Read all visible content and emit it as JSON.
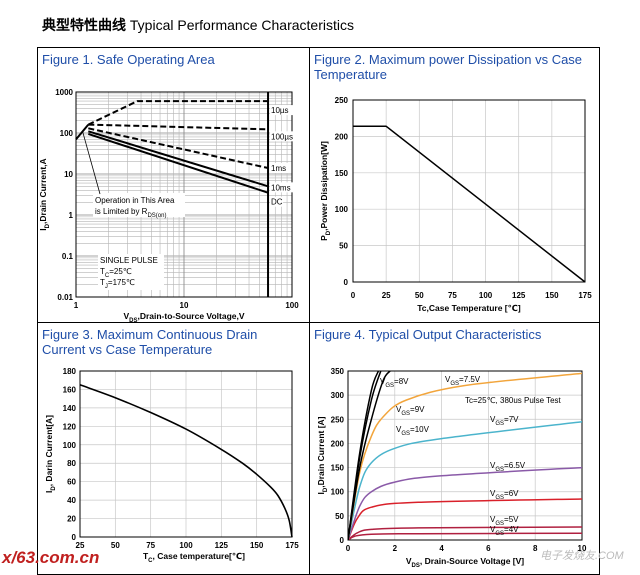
{
  "page": {
    "title_cn": "典型特性曲线",
    "title_en": "Typical Performance Characteristics",
    "watermark_left": "x/63.com.cn",
    "watermark_right": "电子发烧友.COM"
  },
  "colors": {
    "title_blue": "#1f4ea8",
    "orange": "#f2a53c",
    "teal": "#4bb4cc",
    "purple": "#8a5aa8",
    "red": "#d9202a",
    "crimson": "#b02040"
  },
  "figures": [
    {
      "title": "Figure 1. Safe Operating Area"
    },
    {
      "title": "Figure 2. Maximum power Dissipation vs Case Temperature"
    },
    {
      "title": "Figure 3. Maximum Continuous Drain Current vs Case Temperature"
    },
    {
      "title": "Figure 4. Typical Output Characteristics"
    }
  ],
  "chart_data": [
    {
      "type": "line",
      "log_scale": {
        "x": true,
        "y": true
      },
      "xlabel": "V",
      "xlabel_sub": "DS",
      "xlabel_rest": ",Drain-to-Source Voltage,V",
      "ylabel": "I",
      "ylabel_sub": "D",
      "ylabel_rest": ",Drain Current,A",
      "xlim": [
        1,
        100
      ],
      "ylim": [
        0.01,
        1000
      ],
      "x_ticks": [
        {
          "v": 1,
          "label": "1"
        },
        {
          "v": 10,
          "label": "10"
        },
        {
          "v": 100,
          "label": "100"
        }
      ],
      "y_ticks": [
        {
          "v": 1000,
          "label": "1000"
        },
        {
          "v": 100,
          "label": "100"
        },
        {
          "v": 10,
          "label": "10"
        },
        {
          "v": 1,
          "label": "1"
        },
        {
          "v": 0.1,
          "label": "0.1"
        },
        {
          "v": 0.01,
          "label": "0.01"
        }
      ],
      "grid": true,
      "series": [
        {
          "name": "10µs",
          "style": "dash",
          "x": [
            1.3,
            3.7,
            60
          ],
          "y": [
            160,
            600,
            600
          ]
        },
        {
          "name": "100µs",
          "style": "dash",
          "x": [
            1.3,
            60
          ],
          "y": [
            160,
            123
          ]
        },
        {
          "name": "1ms",
          "style": "dash",
          "x": [
            1.3,
            60
          ],
          "y": [
            130,
            14
          ]
        },
        {
          "name": "10ms",
          "style": "solid",
          "x": [
            1.3,
            60
          ],
          "y": [
            110,
            5
          ]
        },
        {
          "name": "DC",
          "style": "solid",
          "x": [
            1.3,
            60
          ],
          "y": [
            95,
            3.5
          ]
        }
      ],
      "limit_line": {
        "x": [
          1,
          1.3
        ],
        "y": [
          70,
          160
        ]
      },
      "vmax_line": {
        "x": [
          60,
          60
        ],
        "y": [
          0.01,
          1000
        ]
      },
      "annotations": {
        "operation_text": "Operation in This Area",
        "limited_text": "is Limited by R",
        "limited_sub": "DS(on)",
        "single_pulse": "SINGLE PULSE",
        "tc_main": "T",
        "tc_sub": "C",
        "tc_rest": "=25℃",
        "tj_main": "T",
        "tj_sub": "J",
        "tj_rest": "=175℃"
      }
    },
    {
      "type": "line",
      "xlabel": "Tc,Case Temperature [℃]",
      "ylabel": "P",
      "ylabel_sub": "D",
      "ylabel_rest": ",Power Dissipation[W]",
      "xlim": [
        0,
        175
      ],
      "ylim": [
        0,
        250
      ],
      "x_ticks": [
        0,
        25,
        50,
        75,
        100,
        125,
        150,
        175
      ],
      "y_ticks": [
        0,
        50,
        100,
        150,
        200,
        250
      ],
      "grid": true,
      "series": [
        {
          "x": [
            0,
            25,
            175
          ],
          "y": [
            214,
            214,
            0
          ]
        }
      ]
    },
    {
      "type": "line",
      "xlabel": "T",
      "xlabel_sub": "C",
      "xlabel_rest": ", Case temperature[℃]",
      "ylabel": "I",
      "ylabel_sub": "D",
      "ylabel_rest": ", Darin Current[A]",
      "xlim": [
        25,
        175
      ],
      "ylim": [
        0,
        180
      ],
      "x_ticks": [
        25,
        50,
        75,
        100,
        125,
        150,
        175
      ],
      "y_ticks": [
        0,
        20,
        40,
        60,
        80,
        100,
        120,
        140,
        160,
        180
      ],
      "grid": true,
      "series": [
        {
          "x": [
            25,
            50,
            75,
            100,
            125,
            140,
            150,
            160,
            165,
            170,
            173,
            175
          ],
          "y": [
            165,
            151,
            135,
            117,
            95,
            80,
            68,
            54,
            45,
            31,
            18,
            0
          ]
        }
      ]
    },
    {
      "type": "line",
      "xlabel": "V",
      "xlabel_sub": "DS",
      "xlabel_rest": ", Drain-Source Voltage [V]",
      "ylabel": "I",
      "ylabel_sub": "D",
      "ylabel_rest": ",Drain Current [A]",
      "xlim": [
        0,
        10
      ],
      "ylim": [
        0,
        350
      ],
      "x_ticks": [
        0,
        2,
        4,
        6,
        8,
        10
      ],
      "y_ticks": [
        0,
        50,
        100,
        150,
        200,
        250,
        300,
        350
      ],
      "grid": true,
      "test_condition": "Tc=25℃, 380us Pulse Test",
      "series": [
        {
          "name": "V",
          "sub": "GS",
          "rest": "=4V",
          "color": "#b02040",
          "x": [
            0,
            0.3,
            1,
            3,
            10
          ],
          "y": [
            0,
            8,
            12,
            13,
            14
          ]
        },
        {
          "name": "V",
          "sub": "GS",
          "rest": "=5V",
          "color": "#b02040",
          "x": [
            0,
            0.4,
            1,
            3,
            10
          ],
          "y": [
            0,
            15,
            22,
            25,
            27
          ]
        },
        {
          "name": "V",
          "sub": "GS",
          "rest": "=6V",
          "color": "#d9202a",
          "x": [
            0,
            0.4,
            1,
            3,
            10
          ],
          "y": [
            0,
            45,
            68,
            78,
            85
          ]
        },
        {
          "name": "V",
          "sub": "GS",
          "rest": "=6.5V",
          "color": "#8a5aa8",
          "x": [
            0,
            0.5,
            1,
            2,
            4,
            10
          ],
          "y": [
            0,
            70,
            100,
            120,
            133,
            150
          ]
        },
        {
          "name": "V",
          "sub": "GS",
          "rest": "=7V",
          "color": "#4bb4cc",
          "x": [
            0,
            0.5,
            1,
            2,
            4,
            10
          ],
          "y": [
            0,
            110,
            160,
            190,
            210,
            245
          ]
        },
        {
          "name": "V",
          "sub": "GS",
          "rest": "=7.5V",
          "color": "#f2a53c",
          "x": [
            0,
            0.5,
            1,
            1.5,
            2.5,
            5,
            10
          ],
          "y": [
            0,
            140,
            215,
            255,
            290,
            320,
            345
          ]
        },
        {
          "name": "V",
          "sub": "GS",
          "rest": "=8V",
          "color": "#000000",
          "x": [
            0,
            0.5,
            1,
            1.5,
            1.8
          ],
          "y": [
            0,
            150,
            250,
            330,
            350
          ]
        },
        {
          "name": "V",
          "sub": "GS",
          "rest": "=9V",
          "color": "#000000",
          "x": [
            0,
            0.5,
            1,
            1.4
          ],
          "y": [
            0,
            170,
            290,
            350
          ]
        },
        {
          "name": "V",
          "sub": "GS",
          "rest": "=10V",
          "color": "#000000",
          "x": [
            0,
            0.5,
            1,
            1.3
          ],
          "y": [
            0,
            180,
            310,
            350
          ]
        }
      ]
    }
  ]
}
